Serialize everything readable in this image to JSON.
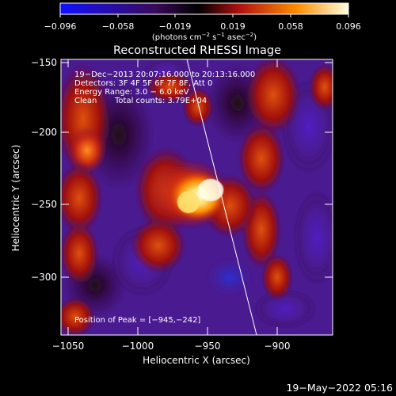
{
  "colorbar": {
    "ticks": [
      "−0.096",
      "−0.058",
      "−0.019",
      "0.019",
      "0.058",
      "0.096"
    ],
    "units": "(photons cm",
    "units_exp1": "−2",
    "units_mid": " s",
    "units_exp2": "−1",
    "units_mid2": " asec",
    "units_exp3": "−2",
    "units_end": ")"
  },
  "title": "Reconstructed RHESSI Image",
  "info": {
    "line1": "19−Dec−2013 20:07:16.000 to 20:13:16.000",
    "line2": "Detectors: 3F 4F 5F 6F 7F 8F, Att 0",
    "line3": "Energy Range: 3.0 − 6.0 keV",
    "line4_label": "Clean",
    "line4_value": "Total counts: 3.79E+04"
  },
  "peak_text": "Position of Peak = [−945,−242]",
  "axes": {
    "xlabel": "Heliocentric X (arcsec)",
    "ylabel": "Heliocentric Y (arcsec)",
    "xticks": [
      "−1050",
      "−1000",
      "−950",
      "−900"
    ],
    "yticks": [
      "−150",
      "−200",
      "−250",
      "−300"
    ]
  },
  "timestamp": "19−May−2022 05:16",
  "colors": {
    "cmap_low": "#1010ff",
    "cmap_mid": "#000000",
    "cmap_red": "#c81010",
    "cmap_orange": "#ff8c00",
    "cmap_high": "#ffffc0"
  }
}
